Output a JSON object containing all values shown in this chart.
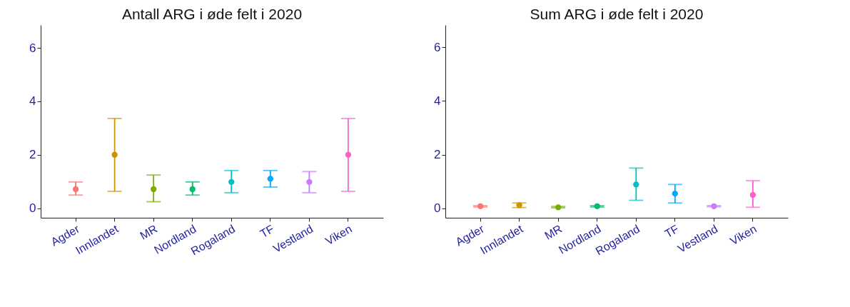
{
  "chart_data": [
    {
      "type": "scatter",
      "title": "Antall ARG i øde felt i 2020",
      "categories": [
        "Agder",
        "Innlandet",
        "MR",
        "Nordland",
        "Rogaland",
        "TF",
        "Vestland",
        "Viken"
      ],
      "values": [
        0.71,
        2.0,
        0.71,
        0.71,
        0.98,
        1.1,
        0.98,
        2.0
      ],
      "errors": [
        [
          0.49,
          0.98
        ],
        [
          0.63,
          3.36
        ],
        [
          0.24,
          1.24
        ],
        [
          0.49,
          0.98
        ],
        [
          0.58,
          1.41
        ],
        [
          0.79,
          1.41
        ],
        [
          0.58,
          1.37
        ],
        [
          0.63,
          3.36
        ]
      ],
      "colors": [
        "#f8766d",
        "#cd9600",
        "#7cae00",
        "#00be67",
        "#00bfc4",
        "#00a9ff",
        "#c77cff",
        "#ff61cc"
      ],
      "ylim": [
        -0.36,
        6.86
      ],
      "yticks": [
        0,
        2,
        4,
        6
      ],
      "grid": false
    },
    {
      "type": "scatter",
      "title": "Sum ARG i øde felt i 2020",
      "categories": [
        "Agder",
        "Innlandet",
        "MR",
        "Nordland",
        "Rogaland",
        "TF",
        "Vestland",
        "Viken"
      ],
      "values": [
        0.08,
        0.12,
        0.04,
        0.08,
        0.89,
        0.55,
        0.08,
        0.5
      ],
      "errors": [
        [
          0.05,
          0.1
        ],
        [
          0.03,
          0.2
        ],
        [
          0.02,
          0.07
        ],
        [
          0.05,
          0.1
        ],
        [
          0.3,
          1.5
        ],
        [
          0.2,
          0.89
        ],
        [
          0.06,
          0.1
        ],
        [
          0.04,
          1.03
        ]
      ],
      "colors": [
        "#f8766d",
        "#cd9600",
        "#7cae00",
        "#00be67",
        "#00bfc4",
        "#00a9ff",
        "#c77cff",
        "#ff61cc"
      ],
      "ylim": [
        -0.35,
        6.83
      ],
      "yticks": [
        0,
        2,
        4,
        6
      ],
      "grid": false
    }
  ]
}
